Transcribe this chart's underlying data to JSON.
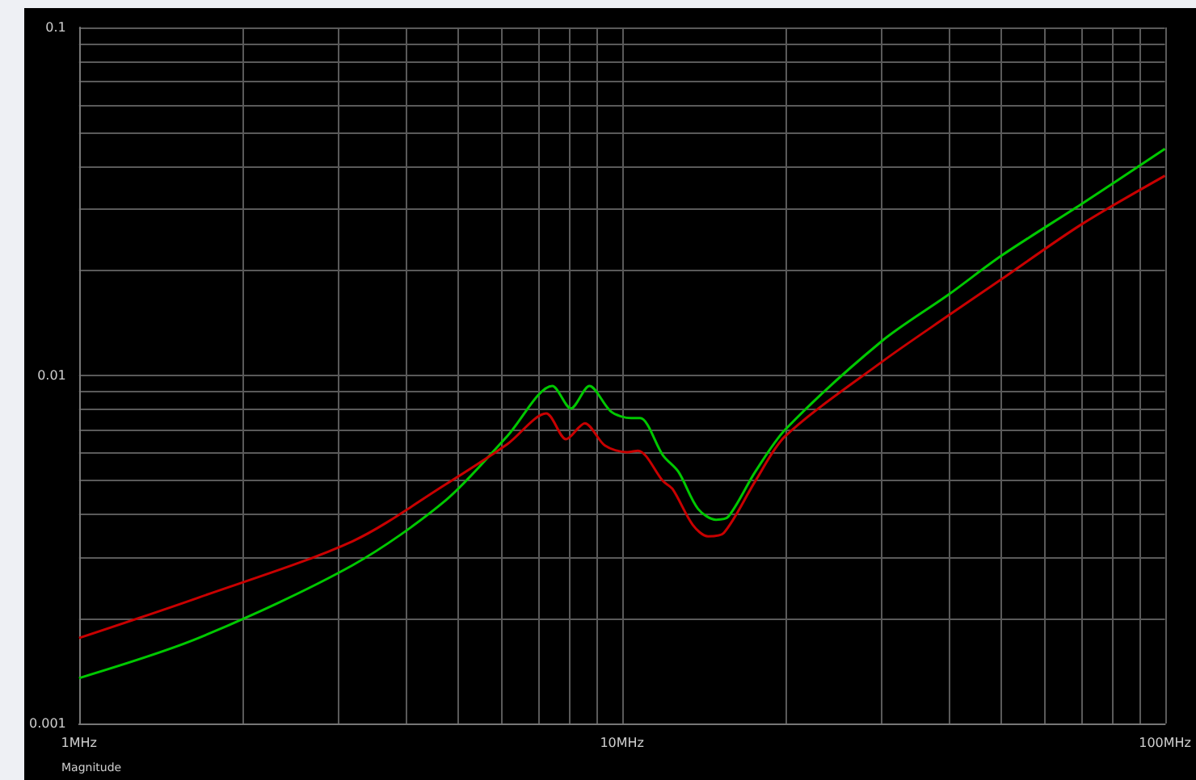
{
  "chart_data": {
    "type": "line",
    "log": "xy",
    "grid": true,
    "marker": "none",
    "line_style": "solid",
    "xlim": [
      1,
      100
    ],
    "ylim": [
      0.001,
      0.1
    ],
    "xticks": [
      {
        "value": 1,
        "label": "1MHz"
      },
      {
        "value": 2,
        "label": null
      },
      {
        "value": 3,
        "label": null
      },
      {
        "value": 4,
        "label": null
      },
      {
        "value": 5,
        "label": null
      },
      {
        "value": 6,
        "label": null
      },
      {
        "value": 7,
        "label": null
      },
      {
        "value": 8,
        "label": null
      },
      {
        "value": 9,
        "label": null
      },
      {
        "value": 10,
        "label": "10MHz"
      },
      {
        "value": 20,
        "label": null
      },
      {
        "value": 30,
        "label": null
      },
      {
        "value": 40,
        "label": null
      },
      {
        "value": 50,
        "label": null
      },
      {
        "value": 60,
        "label": null
      },
      {
        "value": 70,
        "label": null
      },
      {
        "value": 80,
        "label": null
      },
      {
        "value": 90,
        "label": null
      },
      {
        "value": 100,
        "label": "100MHz"
      }
    ],
    "yticks": [
      0.001,
      {
        "value": 0.002,
        "label": null
      },
      {
        "value": 0.003,
        "label": null
      },
      {
        "value": 0.004,
        "label": null
      },
      {
        "value": 0.005,
        "label": null
      },
      {
        "value": 0.006,
        "label": null
      },
      {
        "value": 0.007,
        "label": null
      },
      {
        "value": 0.008,
        "label": null
      },
      {
        "value": 0.009,
        "label": null
      },
      0.01,
      {
        "value": 0.02,
        "label": null
      },
      {
        "value": 0.03,
        "label": null
      },
      {
        "value": 0.04,
        "label": null
      },
      {
        "value": 0.05,
        "label": null
      },
      {
        "value": 0.06,
        "label": null
      },
      {
        "value": 0.07,
        "label": null
      },
      {
        "value": 0.08,
        "label": null
      },
      {
        "value": 0.09,
        "label": null
      },
      0.1
    ],
    "annotations": [
      "Magnitude"
    ],
    "series": [
      {
        "color": "#00c800",
        "x": [
          1,
          1.66,
          3.19,
          4.73,
          6.15,
          7.44,
          8.05,
          8.71,
          9.55,
          10.4,
          10.8,
          11.9,
          12.7,
          13.8,
          14.9,
          15.7,
          17.6,
          20,
          30,
          40,
          50,
          70,
          100
        ],
        "values": [
          0.00135,
          0.00176,
          0.00285,
          0.00437,
          0.0067,
          0.00933,
          0.00804,
          0.00933,
          0.00787,
          0.00754,
          0.00754,
          0.00589,
          0.00529,
          0.00414,
          0.00385,
          0.00393,
          0.00529,
          0.007,
          0.0125,
          0.0171,
          0.0221,
          0.031,
          0.0448
        ]
      },
      {
        "color": "#c80000",
        "x": [
          1,
          1.66,
          3.19,
          4.73,
          6.15,
          7.25,
          7.89,
          8.54,
          9.3,
          10.2,
          10.7,
          11.9,
          12.4,
          13.5,
          14.4,
          15.4,
          17.6,
          20,
          30,
          40,
          50,
          70,
          100
        ],
        "values": [
          0.00176,
          0.0023,
          0.00334,
          0.00486,
          0.00635,
          0.00778,
          0.00656,
          0.00729,
          0.00629,
          0.00602,
          0.00608,
          0.00497,
          0.00471,
          0.00372,
          0.00345,
          0.00353,
          0.00497,
          0.0067,
          0.0109,
          0.0149,
          0.0189,
          0.0271,
          0.0375
        ]
      }
    ]
  }
}
